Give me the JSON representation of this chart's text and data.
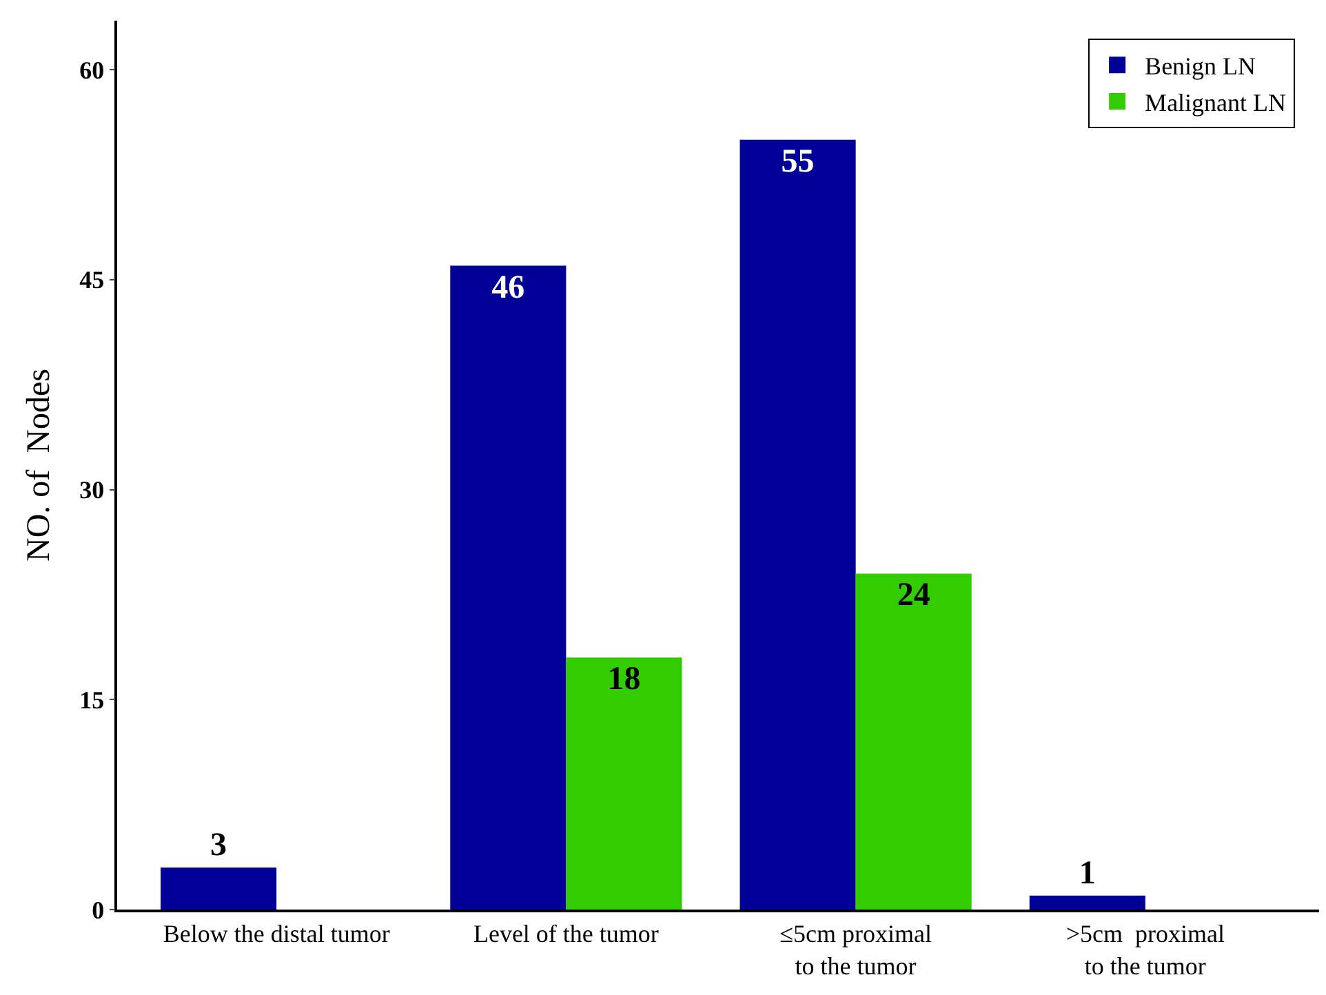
{
  "chart_data": {
    "type": "bar",
    "ylabel": "NO. of  Nodes",
    "categories": [
      "Below the distal tumor",
      "Level of the tumor",
      "≤5cm proximal\nto the tumor",
      ">5cm  proximal\nto the tumor"
    ],
    "series": [
      {
        "name": "Benign LN",
        "color": "#000099",
        "values": [
          3,
          46,
          55,
          1
        ]
      },
      {
        "name": "Malignant LN",
        "color": "#33cc00",
        "values": [
          null,
          18,
          24,
          null
        ]
      }
    ],
    "ylim": [
      0,
      63.5
    ],
    "yticks": [
      0,
      15,
      30,
      45,
      60
    ],
    "legend": "top right",
    "data_labels": true
  }
}
